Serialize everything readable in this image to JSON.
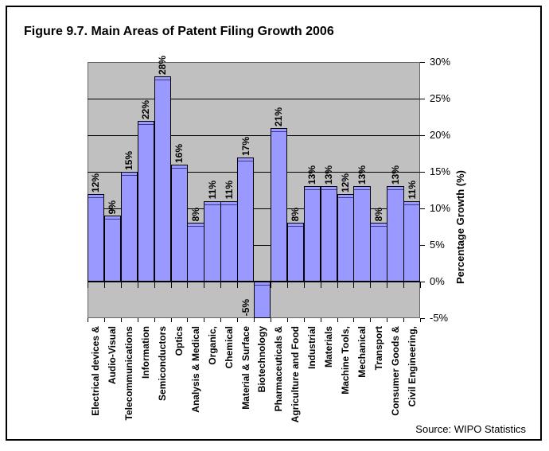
{
  "figure": {
    "title": "Figure 9.7. Main Areas of Patent Filing Growth 2006",
    "source": "Source: WIPO Statistics"
  },
  "chart_data": {
    "type": "bar",
    "title": "Figure 9.7. Main Areas of Patent Filing Growth 2006",
    "ylabel": "Percentage Growth (%)",
    "source": "Source: WIPO Statistics",
    "categories": [
      "Electrical devices &",
      "Audio-Visual",
      "Telecommunications",
      "Information",
      "Semiconductors",
      "Optics",
      "Analysis & Medical",
      "Organic,",
      "Chemical",
      "Material & Surface",
      "Biotechnology",
      "Pharmaceuticals &",
      "Agriculture and Food",
      "Industrial",
      "Materials",
      "Machine Tools,",
      "Mechanical",
      "Transport",
      "Consumer Goods &",
      "Civil Engineering,"
    ],
    "values": [
      12,
      9,
      15,
      22,
      28,
      16,
      8,
      11,
      11,
      17,
      -5,
      21,
      8,
      13,
      13,
      12,
      13,
      8,
      13,
      11
    ],
    "data_labels": [
      "12%",
      "9%",
      "15%",
      "22%",
      "28%",
      "16%",
      "8%",
      "11%",
      "11%",
      "17%",
      "-5%",
      "21%",
      "8%",
      "13%",
      "13%",
      "12%",
      "13%",
      "8%",
      "13%",
      "11%"
    ],
    "ylim": [
      -5,
      30
    ],
    "ytick_step": 5,
    "ytick_labels": [
      "30%",
      "25%",
      "20%",
      "15%",
      "10%",
      "5%",
      "0%",
      "-5%"
    ],
    "grid": "horizontal",
    "legend": "none",
    "value_axis_side": "right",
    "colors": {
      "bar_fill": "#9999FF",
      "bar_border": "#000000",
      "bar_inner_line": "#3A3A8C",
      "plot_background": "#C0C0C0",
      "gridline": "#000000",
      "chart_background": "#FFFFFF",
      "frame_border": "#000000",
      "text": "#000000"
    }
  }
}
